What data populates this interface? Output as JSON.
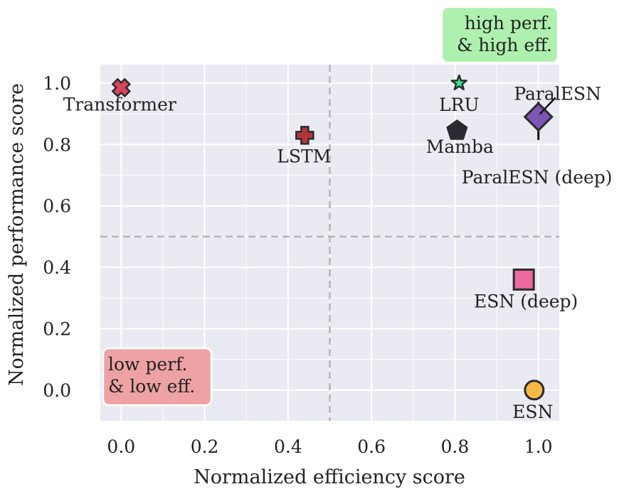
{
  "chart_data": {
    "type": "scatter",
    "xlabel": "Normalized efficiency score",
    "ylabel": "Normalized performance score",
    "xlim": [
      -0.05,
      1.05
    ],
    "ylim": [
      -0.1,
      1.06
    ],
    "xticks": [
      "0.0",
      "0.2",
      "0.4",
      "0.6",
      "0.8",
      "1.0"
    ],
    "xtick_values": [
      0.0,
      0.2,
      0.4,
      0.6,
      0.8,
      1.0
    ],
    "yticks": [
      "0.0",
      "0.2",
      "0.4",
      "0.6",
      "0.8",
      "1.0"
    ],
    "ytick_values": [
      0.0,
      0.2,
      0.4,
      0.6,
      0.8,
      1.0
    ],
    "grid": true,
    "reference_lines": {
      "x": 0.5,
      "y": 0.5,
      "style": "dashed",
      "color": "#b5b5b8"
    },
    "colors": {
      "background": "#eaeaf2",
      "grid": "#ffffff"
    },
    "points": [
      {
        "name": "Transformer",
        "x": 0.0,
        "y": 0.985,
        "marker": "x-filled",
        "color": "#d9435b"
      },
      {
        "name": "LSTM",
        "x": 0.44,
        "y": 0.83,
        "marker": "plus-filled",
        "color": "#b5343c"
      },
      {
        "name": "LRU",
        "x": 0.81,
        "y": 1.0,
        "marker": "star",
        "color": "#2ee88d"
      },
      {
        "name": "Mamba",
        "x": 0.805,
        "y": 0.845,
        "marker": "pentagon",
        "color": "#2a2a33"
      },
      {
        "name": "ParalESN",
        "x": 1.0,
        "y": 0.89,
        "marker": "diamond",
        "color": "#7d55b5"
      },
      {
        "name": "ParalESN (deep)",
        "x": 1.0,
        "y": 0.87,
        "marker": "vline",
        "color": "#111111"
      },
      {
        "name": "ESN (deep)",
        "x": 0.965,
        "y": 0.36,
        "marker": "square",
        "color": "#ec6aa0"
      },
      {
        "name": "ESN",
        "x": 0.99,
        "y": 0.0,
        "marker": "circle",
        "color": "#f8b945"
      }
    ],
    "annotations": [
      {
        "lines": [
          "high perf.",
          "& high eff."
        ],
        "color": "#aef0ae"
      },
      {
        "lines": [
          "low perf.",
          "& low eff."
        ],
        "color": "#eea2a4"
      }
    ]
  }
}
